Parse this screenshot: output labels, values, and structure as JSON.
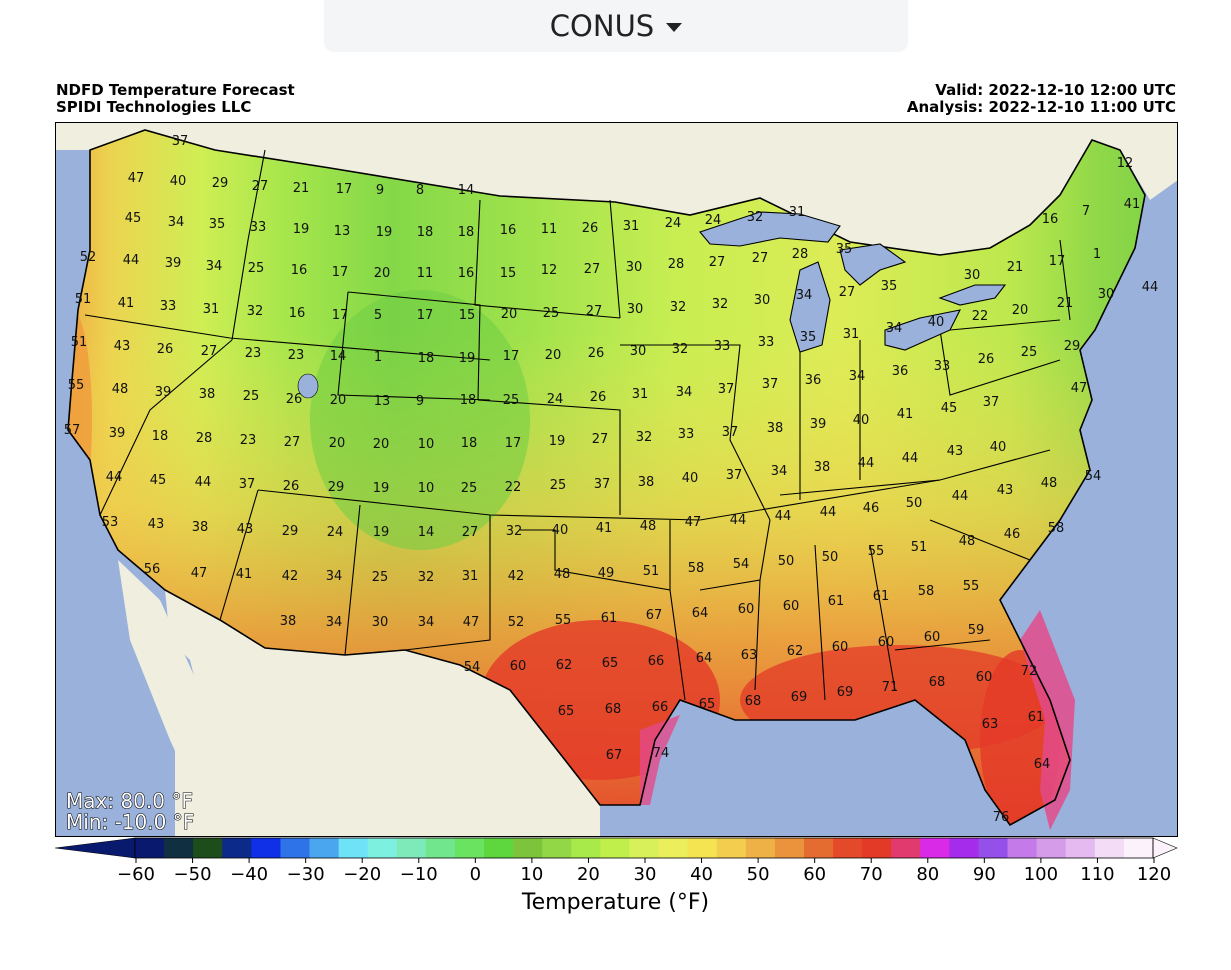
{
  "region_selector": {
    "label": "CONUS"
  },
  "header": {
    "title": "NDFD Temperature Forecast",
    "source": "SPIDI Technologies LLC",
    "valid": "Valid: 2022-12-10 12:00 UTC",
    "analysis": "Analysis: 2022-12-10 11:00 UTC"
  },
  "stats": {
    "max": "Max: 80.0 °F",
    "min": "Min: -10.0 °F"
  },
  "colorbar": {
    "title": "Temperature (°F)",
    "ticks": [
      "−60",
      "−50",
      "−40",
      "−30",
      "−20",
      "−10",
      "0",
      "10",
      "20",
      "30",
      "40",
      "50",
      "60",
      "70",
      "80",
      "90",
      "100",
      "110",
      "120"
    ],
    "colors": [
      "#091a6e",
      "#103042",
      "#1e4d1c",
      "#0c2a8a",
      "#1030e8",
      "#2f73e8",
      "#4aa6ee",
      "#6ee2f7",
      "#7ef0df",
      "#7eeaba",
      "#72e68c",
      "#6ae460",
      "#5ed63e",
      "#7cc43c",
      "#92d846",
      "#a8ea4a",
      "#c0ef4c",
      "#d8f05a",
      "#ecef5c",
      "#f4e452",
      "#f3cd4e",
      "#eeb145",
      "#ea933c",
      "#e56c31",
      "#e44a2a",
      "#e33a28",
      "#e13a6e",
      "#d92ae8",
      "#a52cea",
      "#9650ea",
      "#c47ae8",
      "#d59cea",
      "#e4baf0",
      "#f2dcf6",
      "#fbf2fb"
    ]
  },
  "map": {
    "land_colors": {
      "ocean": "#9ab2db",
      "canada": "#efeedf",
      "mexico": "#efeedf"
    },
    "temperature_labels": [
      [
        "37",
        180,
        145
      ],
      [
        "47",
        136,
        182
      ],
      [
        "40",
        178,
        185
      ],
      [
        "29",
        220,
        187
      ],
      [
        "27",
        260,
        190
      ],
      [
        "21",
        301,
        192
      ],
      [
        "17",
        344,
        193
      ],
      [
        "9",
        380,
        194
      ],
      [
        "8",
        420,
        194
      ],
      [
        "14",
        466,
        194
      ],
      [
        "45",
        133,
        222
      ],
      [
        "34",
        176,
        226
      ],
      [
        "35",
        217,
        228
      ],
      [
        "33",
        258,
        231
      ],
      [
        "19",
        301,
        233
      ],
      [
        "13",
        342,
        235
      ],
      [
        "19",
        384,
        236
      ],
      [
        "18",
        425,
        236
      ],
      [
        "18",
        466,
        236
      ],
      [
        "16",
        508,
        234
      ],
      [
        "11",
        549,
        233
      ],
      [
        "26",
        590,
        232
      ],
      [
        "31",
        631,
        230
      ],
      [
        "24",
        673,
        227
      ],
      [
        "24",
        713,
        224
      ],
      [
        "32",
        755,
        221
      ],
      [
        "31",
        797,
        216
      ],
      [
        "16",
        1050,
        223
      ],
      [
        "7",
        1086,
        215
      ],
      [
        "12",
        1125,
        167
      ],
      [
        "41",
        1132,
        208
      ],
      [
        "52",
        88,
        261
      ],
      [
        "44",
        131,
        264
      ],
      [
        "39",
        173,
        267
      ],
      [
        "34",
        214,
        270
      ],
      [
        "25",
        256,
        272
      ],
      [
        "16",
        299,
        274
      ],
      [
        "17",
        340,
        276
      ],
      [
        "20",
        382,
        277
      ],
      [
        "11",
        425,
        277
      ],
      [
        "16",
        466,
        277
      ],
      [
        "15",
        508,
        277
      ],
      [
        "12",
        549,
        274
      ],
      [
        "27",
        592,
        273
      ],
      [
        "30",
        634,
        271
      ],
      [
        "28",
        676,
        268
      ],
      [
        "27",
        717,
        266
      ],
      [
        "27",
        760,
        262
      ],
      [
        "28",
        800,
        258
      ],
      [
        "35",
        844,
        253
      ],
      [
        "1",
        1097,
        258
      ],
      [
        "21",
        1015,
        271
      ],
      [
        "17",
        1057,
        265
      ],
      [
        "30",
        972,
        279
      ],
      [
        "51",
        83,
        303
      ],
      [
        "41",
        126,
        307
      ],
      [
        "33",
        168,
        310
      ],
      [
        "31",
        211,
        313
      ],
      [
        "32",
        255,
        315
      ],
      [
        "16",
        297,
        317
      ],
      [
        "17",
        340,
        319
      ],
      [
        "5",
        378,
        319
      ],
      [
        "17",
        425,
        319
      ],
      [
        "15",
        467,
        319
      ],
      [
        "20",
        509,
        318
      ],
      [
        "25",
        551,
        317
      ],
      [
        "27",
        594,
        315
      ],
      [
        "30",
        635,
        313
      ],
      [
        "32",
        678,
        311
      ],
      [
        "32",
        720,
        308
      ],
      [
        "30",
        762,
        304
      ],
      [
        "34",
        804,
        299
      ],
      [
        "27",
        847,
        296
      ],
      [
        "35",
        889,
        290
      ],
      [
        "44",
        1150,
        291
      ],
      [
        "30",
        1106,
        298
      ],
      [
        "21",
        1065,
        307
      ],
      [
        "22",
        980,
        320
      ],
      [
        "20",
        1020,
        314
      ],
      [
        "40",
        936,
        326
      ],
      [
        "34",
        894,
        332
      ],
      [
        "51",
        79,
        346
      ],
      [
        "43",
        122,
        350
      ],
      [
        "26",
        165,
        353
      ],
      [
        "27",
        209,
        355
      ],
      [
        "23",
        253,
        357
      ],
      [
        "23",
        296,
        359
      ],
      [
        "14",
        338,
        360
      ],
      [
        "1",
        378,
        361
      ],
      [
        "18",
        426,
        362
      ],
      [
        "19",
        467,
        362
      ],
      [
        "17",
        511,
        360
      ],
      [
        "20",
        553,
        359
      ],
      [
        "26",
        596,
        357
      ],
      [
        "30",
        638,
        355
      ],
      [
        "32",
        680,
        353
      ],
      [
        "33",
        722,
        350
      ],
      [
        "33",
        766,
        346
      ],
      [
        "35",
        808,
        341
      ],
      [
        "31",
        851,
        338
      ],
      [
        "29",
        1072,
        350
      ],
      [
        "25",
        1029,
        356
      ],
      [
        "26",
        986,
        363
      ],
      [
        "33",
        942,
        370
      ],
      [
        "36",
        900,
        375
      ],
      [
        "55",
        76,
        389
      ],
      [
        "48",
        120,
        393
      ],
      [
        "39",
        163,
        396
      ],
      [
        "38",
        207,
        398
      ],
      [
        "25",
        251,
        400
      ],
      [
        "26",
        294,
        403
      ],
      [
        "20",
        338,
        404
      ],
      [
        "13",
        382,
        405
      ],
      [
        "9",
        420,
        405
      ],
      [
        "18",
        468,
        404
      ],
      [
        "25",
        511,
        404
      ],
      [
        "24",
        555,
        403
      ],
      [
        "26",
        598,
        401
      ],
      [
        "31",
        640,
        398
      ],
      [
        "34",
        684,
        396
      ],
      [
        "37",
        726,
        393
      ],
      [
        "37",
        770,
        388
      ],
      [
        "36",
        813,
        384
      ],
      [
        "34",
        857,
        380
      ],
      [
        "47",
        1079,
        392
      ],
      [
        "37",
        991,
        406
      ],
      [
        "45",
        949,
        412
      ],
      [
        "41",
        905,
        418
      ],
      [
        "57",
        72,
        434
      ],
      [
        "39",
        117,
        437
      ],
      [
        "18",
        160,
        440
      ],
      [
        "28",
        204,
        442
      ],
      [
        "23",
        248,
        444
      ],
      [
        "27",
        292,
        446
      ],
      [
        "20",
        337,
        447
      ],
      [
        "20",
        381,
        448
      ],
      [
        "10",
        426,
        448
      ],
      [
        "18",
        469,
        447
      ],
      [
        "17",
        513,
        447
      ],
      [
        "19",
        557,
        445
      ],
      [
        "27",
        600,
        443
      ],
      [
        "32",
        644,
        441
      ],
      [
        "33",
        686,
        438
      ],
      [
        "37",
        730,
        436
      ],
      [
        "38",
        775,
        432
      ],
      [
        "39",
        818,
        428
      ],
      [
        "40",
        861,
        424
      ],
      [
        "40",
        998,
        451
      ],
      [
        "43",
        955,
        455
      ],
      [
        "44",
        910,
        462
      ],
      [
        "44",
        866,
        467
      ],
      [
        "38",
        822,
        471
      ],
      [
        "34",
        779,
        475
      ],
      [
        "44",
        114,
        481
      ],
      [
        "45",
        158,
        484
      ],
      [
        "44",
        203,
        486
      ],
      [
        "37",
        247,
        488
      ],
      [
        "26",
        291,
        490
      ],
      [
        "29",
        336,
        491
      ],
      [
        "19",
        381,
        492
      ],
      [
        "10",
        426,
        492
      ],
      [
        "25",
        469,
        492
      ],
      [
        "22",
        513,
        491
      ],
      [
        "25",
        558,
        489
      ],
      [
        "37",
        602,
        488
      ],
      [
        "38",
        646,
        486
      ],
      [
        "40",
        690,
        482
      ],
      [
        "37",
        734,
        479
      ],
      [
        "54",
        1093,
        480
      ],
      [
        "48",
        1049,
        487
      ],
      [
        "43",
        1005,
        494
      ],
      [
        "44",
        960,
        500
      ],
      [
        "50",
        914,
        507
      ],
      [
        "46",
        871,
        512
      ],
      [
        "44",
        828,
        516
      ],
      [
        "44",
        783,
        520
      ],
      [
        "53",
        110,
        526
      ],
      [
        "43",
        156,
        528
      ],
      [
        "38",
        200,
        531
      ],
      [
        "43",
        245,
        533
      ],
      [
        "29",
        290,
        535
      ],
      [
        "24",
        335,
        536
      ],
      [
        "19",
        381,
        536
      ],
      [
        "14",
        426,
        536
      ],
      [
        "27",
        470,
        536
      ],
      [
        "32",
        514,
        535
      ],
      [
        "40",
        560,
        534
      ],
      [
        "41",
        604,
        532
      ],
      [
        "48",
        648,
        530
      ],
      [
        "47",
        693,
        526
      ],
      [
        "44",
        738,
        524
      ],
      [
        "58",
        1056,
        532
      ],
      [
        "46",
        1012,
        538
      ],
      [
        "48",
        967,
        545
      ],
      [
        "51",
        919,
        551
      ],
      [
        "55",
        876,
        555
      ],
      [
        "50",
        830,
        561
      ],
      [
        "50",
        786,
        565
      ],
      [
        "54",
        741,
        568
      ],
      [
        "58",
        696,
        572
      ],
      [
        "56",
        152,
        573
      ],
      [
        "47",
        199,
        577
      ],
      [
        "41",
        244,
        578
      ],
      [
        "42",
        290,
        580
      ],
      [
        "34",
        334,
        580
      ],
      [
        "25",
        380,
        581
      ],
      [
        "32",
        426,
        581
      ],
      [
        "31",
        470,
        580
      ],
      [
        "42",
        516,
        580
      ],
      [
        "48",
        562,
        578
      ],
      [
        "49",
        606,
        577
      ],
      [
        "51",
        651,
        575
      ],
      [
        "55",
        971,
        590
      ],
      [
        "58",
        926,
        595
      ],
      [
        "61",
        881,
        600
      ],
      [
        "61",
        836,
        605
      ],
      [
        "60",
        791,
        610
      ],
      [
        "60",
        746,
        613
      ],
      [
        "64",
        700,
        617
      ],
      [
        "38",
        288,
        625
      ],
      [
        "34",
        334,
        626
      ],
      [
        "30",
        380,
        626
      ],
      [
        "34",
        426,
        626
      ],
      [
        "47",
        471,
        626
      ],
      [
        "52",
        516,
        626
      ],
      [
        "55",
        563,
        624
      ],
      [
        "61",
        609,
        622
      ],
      [
        "67",
        654,
        619
      ],
      [
        "59",
        976,
        634
      ],
      [
        "60",
        932,
        641
      ],
      [
        "60",
        886,
        646
      ],
      [
        "60",
        840,
        651
      ],
      [
        "62",
        795,
        655
      ],
      [
        "63",
        749,
        659
      ],
      [
        "64",
        704,
        662
      ],
      [
        "54",
        472,
        671
      ],
      [
        "60",
        518,
        670
      ],
      [
        "62",
        564,
        669
      ],
      [
        "65",
        610,
        667
      ],
      [
        "66",
        656,
        665
      ],
      [
        "72",
        1029,
        675
      ],
      [
        "60",
        984,
        681
      ],
      [
        "68",
        937,
        686
      ],
      [
        "71",
        890,
        691
      ],
      [
        "69",
        845,
        696
      ],
      [
        "69",
        799,
        701
      ],
      [
        "68",
        753,
        705
      ],
      [
        "65",
        707,
        708
      ],
      [
        "65",
        566,
        715
      ],
      [
        "68",
        613,
        713
      ],
      [
        "66",
        660,
        711
      ],
      [
        "61",
        1036,
        721
      ],
      [
        "63",
        990,
        728
      ],
      [
        "67",
        614,
        759
      ],
      [
        "74",
        661,
        757
      ],
      [
        "64",
        1042,
        768
      ],
      [
        "76",
        1001,
        821
      ]
    ]
  }
}
